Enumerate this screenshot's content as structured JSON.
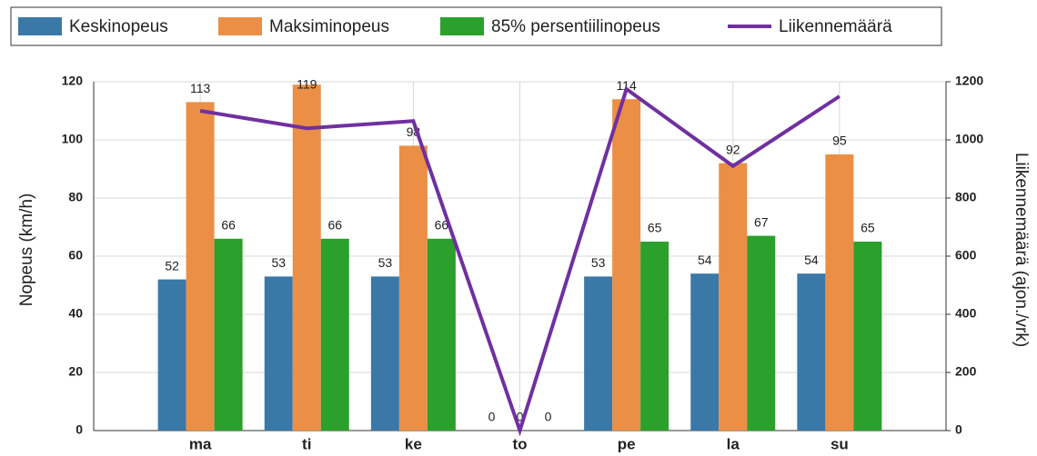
{
  "chart_data": {
    "type": "bar",
    "categories": [
      "ma",
      "ti",
      "ke",
      "to",
      "pe",
      "la",
      "su"
    ],
    "series": [
      {
        "name": "Keskinopeus",
        "color": "#3a78a8",
        "values": [
          52,
          53,
          53,
          0,
          53,
          54,
          54
        ]
      },
      {
        "name": "Maksiminopeus",
        "color": "#ea8f45",
        "values": [
          113,
          119,
          98,
          0,
          114,
          92,
          95
        ]
      },
      {
        "name": "85% persentiilinopeus",
        "color": "#2ca02c",
        "values": [
          66,
          66,
          66,
          0,
          65,
          67,
          65
        ]
      },
      {
        "name": "Liikennemäärä",
        "color": "#7030a0",
        "type": "line",
        "axis": "y2",
        "values": [
          1100,
          1040,
          1065,
          0,
          1175,
          910,
          1150
        ]
      }
    ],
    "ylabel": "Nopeus (km/h)",
    "y2label": "Liikennemäärä (ajon./vrk)",
    "ylim": [
      0,
      120
    ],
    "yticks": [
      0,
      20,
      40,
      60,
      80,
      100,
      120
    ],
    "y2lim": [
      0,
      1200
    ],
    "y2ticks": [
      0,
      200,
      400,
      600,
      800,
      1000,
      1200
    ],
    "grid": true
  }
}
